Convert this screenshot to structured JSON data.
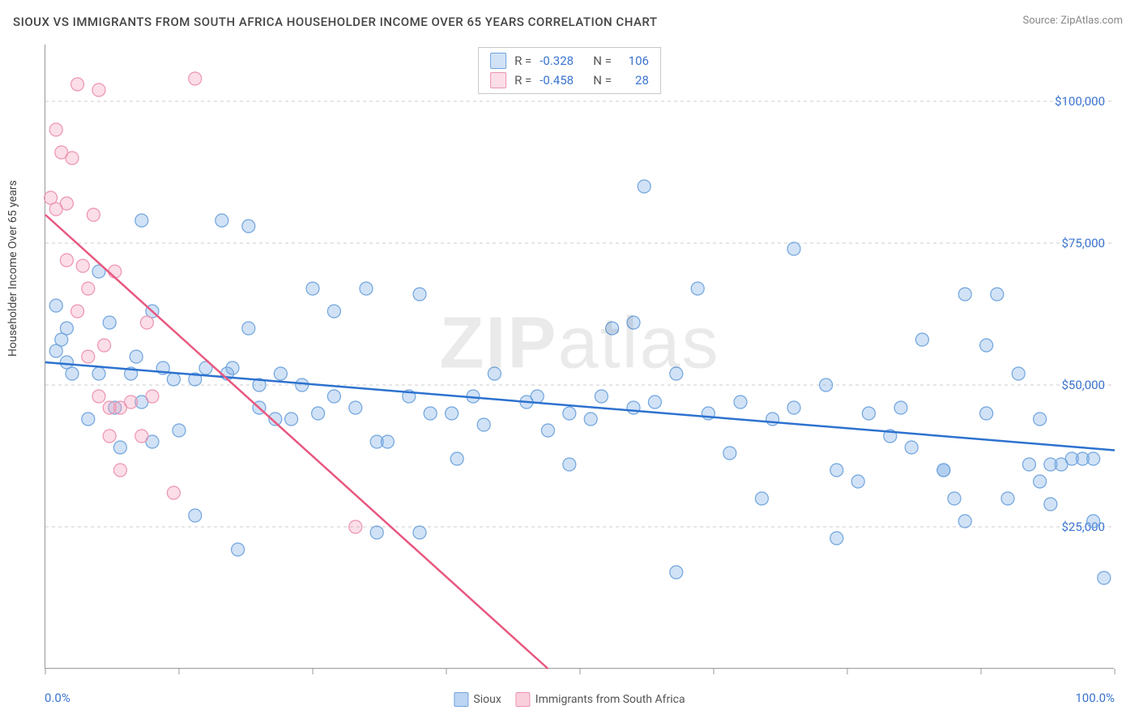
{
  "title": "SIOUX VS IMMIGRANTS FROM SOUTH AFRICA HOUSEHOLDER INCOME OVER 65 YEARS CORRELATION CHART",
  "source": "Source: ZipAtlas.com",
  "watermark_a": "ZIP",
  "watermark_b": "atlas",
  "y_axis_label": "Householder Income Over 65 years",
  "chart": {
    "type": "scatter",
    "background_color": "#ffffff",
    "grid_color": "#cccccc",
    "axis_color": "#999999",
    "text_color": "#444444",
    "value_color": "#3b74d0",
    "xlim": [
      0,
      100
    ],
    "ylim": [
      0,
      110000
    ],
    "x_ticks": [
      0,
      12.5,
      25,
      37.5,
      50,
      62.5,
      75,
      87.5,
      100
    ],
    "y_gridlines": [
      25000,
      50000,
      75000,
      100000
    ],
    "y_tick_labels": [
      "$25,000",
      "$50,000",
      "$75,000",
      "$100,000"
    ],
    "x_min_label": "0.0%",
    "x_max_label": "100.0%",
    "marker_radius": 8,
    "marker_stroke_width": 1.2,
    "trend_line_width": 2.5
  },
  "series": [
    {
      "name": "Sioux",
      "color_fill": "rgba(122,171,230,0.35)",
      "color_stroke": "#6fa4de",
      "line_color": "#2d72cf",
      "R": "-0.328",
      "N": "106",
      "trend": {
        "x1": 0,
        "y1": 54000,
        "x2": 100,
        "y2": 38500
      },
      "points": [
        [
          1,
          64000
        ],
        [
          1,
          56000
        ],
        [
          1.5,
          58000
        ],
        [
          2,
          54000
        ],
        [
          2,
          60000
        ],
        [
          2.5,
          52000
        ],
        [
          4,
          44000
        ],
        [
          5,
          70000
        ],
        [
          5,
          52000
        ],
        [
          6,
          61000
        ],
        [
          6.5,
          46000
        ],
        [
          7,
          39000
        ],
        [
          8,
          52000
        ],
        [
          8.5,
          55000
        ],
        [
          9,
          79000
        ],
        [
          9,
          47000
        ],
        [
          10,
          40000
        ],
        [
          10,
          63000
        ],
        [
          11,
          53000
        ],
        [
          12,
          51000
        ],
        [
          12.5,
          42000
        ],
        [
          14,
          51000
        ],
        [
          14,
          27000
        ],
        [
          15,
          53000
        ],
        [
          16.5,
          79000
        ],
        [
          17,
          52000
        ],
        [
          17.5,
          53000
        ],
        [
          18,
          21000
        ],
        [
          19,
          60000
        ],
        [
          19,
          78000
        ],
        [
          20,
          50000
        ],
        [
          20,
          46000
        ],
        [
          21.5,
          44000
        ],
        [
          22,
          52000
        ],
        [
          23,
          44000
        ],
        [
          24,
          50000
        ],
        [
          25,
          67000
        ],
        [
          25.5,
          45000
        ],
        [
          27,
          63000
        ],
        [
          27,
          48000
        ],
        [
          29,
          46000
        ],
        [
          30,
          67000
        ],
        [
          31,
          40000
        ],
        [
          31,
          24000
        ],
        [
          32,
          40000
        ],
        [
          34,
          48000
        ],
        [
          35,
          66000
        ],
        [
          35,
          24000
        ],
        [
          36,
          45000
        ],
        [
          38,
          45000
        ],
        [
          38.5,
          37000
        ],
        [
          40,
          48000
        ],
        [
          41,
          43000
        ],
        [
          42,
          52000
        ],
        [
          45,
          47000
        ],
        [
          46,
          48000
        ],
        [
          47,
          42000
        ],
        [
          49,
          45000
        ],
        [
          49,
          36000
        ],
        [
          51,
          44000
        ],
        [
          52,
          48000
        ],
        [
          53,
          60000
        ],
        [
          55,
          61000
        ],
        [
          55,
          46000
        ],
        [
          56,
          85000
        ],
        [
          57,
          47000
        ],
        [
          59,
          52000
        ],
        [
          59,
          17000
        ],
        [
          61,
          67000
        ],
        [
          62,
          45000
        ],
        [
          64,
          38000
        ],
        [
          65,
          47000
        ],
        [
          67,
          30000
        ],
        [
          68,
          44000
        ],
        [
          70,
          74000
        ],
        [
          70,
          46000
        ],
        [
          73,
          50000
        ],
        [
          74,
          23000
        ],
        [
          74,
          35000
        ],
        [
          76,
          33000
        ],
        [
          77,
          45000
        ],
        [
          79,
          41000
        ],
        [
          80,
          46000
        ],
        [
          81,
          39000
        ],
        [
          82,
          58000
        ],
        [
          84,
          35000
        ],
        [
          84,
          35000
        ],
        [
          85,
          30000
        ],
        [
          86,
          66000
        ],
        [
          86,
          26000
        ],
        [
          88,
          45000
        ],
        [
          88,
          57000
        ],
        [
          89,
          66000
        ],
        [
          90,
          30000
        ],
        [
          91,
          52000
        ],
        [
          92,
          36000
        ],
        [
          93,
          33000
        ],
        [
          93,
          44000
        ],
        [
          94,
          36000
        ],
        [
          94,
          29000
        ],
        [
          95,
          36000
        ],
        [
          96,
          37000
        ],
        [
          97,
          37000
        ],
        [
          98,
          37000
        ],
        [
          98,
          26000
        ],
        [
          99,
          16000
        ]
      ]
    },
    {
      "name": "Immigrants from South Africa",
      "color_fill": "rgba(244,160,185,0.35)",
      "color_stroke": "#ed93b0",
      "line_color": "#e8577f",
      "R": "-0.458",
      "N": "28",
      "trend": {
        "x1": 0,
        "y1": 80000,
        "x2": 47,
        "y2": 0
      },
      "points": [
        [
          0.5,
          83000
        ],
        [
          1,
          95000
        ],
        [
          1,
          81000
        ],
        [
          1.5,
          91000
        ],
        [
          2,
          82000
        ],
        [
          2,
          72000
        ],
        [
          2.5,
          90000
        ],
        [
          3,
          103000
        ],
        [
          3,
          63000
        ],
        [
          3.5,
          71000
        ],
        [
          4,
          67000
        ],
        [
          4,
          55000
        ],
        [
          4.5,
          80000
        ],
        [
          5,
          102000
        ],
        [
          5,
          48000
        ],
        [
          5.5,
          57000
        ],
        [
          6,
          46000
        ],
        [
          6,
          41000
        ],
        [
          6.5,
          70000
        ],
        [
          7,
          46000
        ],
        [
          7,
          35000
        ],
        [
          8,
          47000
        ],
        [
          9,
          41000
        ],
        [
          9.5,
          61000
        ],
        [
          10,
          48000
        ],
        [
          12,
          31000
        ],
        [
          14,
          104000
        ],
        [
          29,
          25000
        ]
      ]
    }
  ],
  "legend_bottom": [
    {
      "label": "Sioux",
      "fill": "rgba(122,171,230,0.5)",
      "stroke": "#6fa4de"
    },
    {
      "label": "Immigrants from South Africa",
      "fill": "rgba(244,160,185,0.5)",
      "stroke": "#ed93b0"
    }
  ],
  "stats_labels": {
    "R": "R =",
    "N": "N ="
  }
}
